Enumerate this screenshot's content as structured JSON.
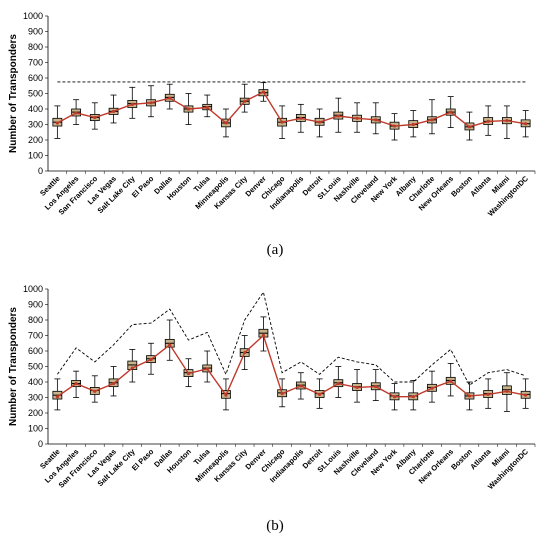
{
  "chart_data": [
    {
      "type": "line",
      "panel_label": "(a)",
      "ylabel": "Number of Transponders",
      "xlabel": "",
      "ylim": [
        0,
        1000
      ],
      "yticks": [
        0,
        100,
        200,
        300,
        400,
        500,
        600,
        700,
        800,
        900,
        1000
      ],
      "grid": false,
      "legend": "none",
      "categories": [
        "Seattle",
        "Los Angeles",
        "San Francisco",
        "Las Vegas",
        "Salt Lake City",
        "El Paso",
        "Dallas",
        "Houston",
        "Tulsa",
        "Minneapolis",
        "Kansas City",
        "Denver",
        "Chicago",
        "Indianapolis",
        "Detroit",
        "St.Louis",
        "Nashville",
        "Cleveland",
        "New York",
        "Albany",
        "Charlotte",
        "New Orleans",
        "Boston",
        "Atlanta",
        "Miami",
        "WashingtonDC"
      ],
      "series": [
        {
          "style": "mean-line",
          "values": [
            310,
            375,
            345,
            385,
            430,
            440,
            470,
            400,
            410,
            310,
            450,
            510,
            315,
            340,
            315,
            355,
            340,
            330,
            290,
            300,
            330,
            380,
            285,
            320,
            325,
            305
          ]
        },
        {
          "style": "box-median",
          "values": [
            315,
            380,
            345,
            385,
            435,
            440,
            475,
            400,
            415,
            310,
            450,
            505,
            315,
            345,
            315,
            360,
            340,
            330,
            290,
            300,
            330,
            380,
            285,
            320,
            325,
            305
          ]
        },
        {
          "style": "whisker-max",
          "values": [
            420,
            460,
            440,
            490,
            540,
            550,
            560,
            500,
            490,
            400,
            560,
            570,
            420,
            430,
            400,
            470,
            440,
            440,
            370,
            390,
            460,
            480,
            380,
            420,
            420,
            390
          ]
        },
        {
          "style": "whisker-min",
          "values": [
            210,
            300,
            270,
            310,
            340,
            350,
            400,
            300,
            350,
            220,
            380,
            450,
            210,
            250,
            220,
            250,
            250,
            240,
            200,
            220,
            240,
            280,
            200,
            230,
            210,
            220
          ]
        },
        {
          "style": "box-upper",
          "values": [
            340,
            400,
            365,
            405,
            455,
            460,
            495,
            420,
            430,
            335,
            470,
            525,
            340,
            365,
            340,
            380,
            360,
            350,
            315,
            325,
            350,
            400,
            310,
            345,
            345,
            330
          ]
        },
        {
          "style": "box-lower",
          "values": [
            290,
            355,
            325,
            365,
            410,
            420,
            450,
            380,
            395,
            285,
            430,
            485,
            290,
            320,
            295,
            335,
            320,
            310,
            270,
            280,
            310,
            360,
            265,
            300,
            305,
            285
          ]
        },
        {
          "style": "dashed-bound",
          "values": [
            575,
            575,
            575,
            575,
            575,
            575,
            575,
            575,
            575,
            575,
            575,
            575,
            575,
            575,
            575,
            575,
            575,
            575,
            575,
            575,
            575,
            575,
            575,
            575,
            575,
            575
          ]
        }
      ]
    },
    {
      "type": "line",
      "panel_label": "(b)",
      "ylabel": "Number of Transponders",
      "xlabel": "",
      "ylim": [
        0,
        1000
      ],
      "yticks": [
        0,
        100,
        200,
        300,
        400,
        500,
        600,
        700,
        800,
        900,
        1000
      ],
      "grid": false,
      "legend": "none",
      "categories": [
        "Seattle",
        "Los Angeles",
        "San Francisco",
        "Las Vegas",
        "Salt Lake City",
        "El Paso",
        "Dallas",
        "Houston",
        "Tulsa",
        "Minneapolis",
        "Kansas City",
        "Denver",
        "Chicago",
        "Indianapolis",
        "Detroit",
        "St.Louis",
        "Nashville",
        "Cleveland",
        "New York",
        "Albany",
        "Charlotte",
        "New Orleans",
        "Boston",
        "Atlanta",
        "Miami",
        "WashingtonDC"
      ],
      "series": [
        {
          "style": "mean-line",
          "values": [
            305,
            390,
            340,
            390,
            490,
            545,
            640,
            455,
            485,
            315,
            590,
            700,
            325,
            375,
            320,
            390,
            365,
            370,
            305,
            305,
            360,
            405,
            310,
            320,
            340,
            315
          ]
        },
        {
          "style": "box-median",
          "values": [
            315,
            390,
            345,
            395,
            510,
            550,
            650,
            460,
            490,
            325,
            590,
            715,
            330,
            380,
            325,
            395,
            370,
            375,
            310,
            310,
            365,
            410,
            310,
            325,
            350,
            320
          ]
        },
        {
          "style": "whisker-max",
          "values": [
            420,
            470,
            440,
            500,
            610,
            650,
            800,
            550,
            600,
            420,
            700,
            820,
            420,
            460,
            420,
            500,
            480,
            480,
            390,
            410,
            470,
            520,
            400,
            420,
            460,
            420
          ]
        },
        {
          "style": "whisker-min",
          "values": [
            220,
            300,
            270,
            310,
            400,
            450,
            540,
            370,
            400,
            220,
            480,
            600,
            240,
            290,
            230,
            300,
            270,
            280,
            220,
            220,
            270,
            310,
            220,
            230,
            210,
            230
          ]
        },
        {
          "style": "box-upper",
          "values": [
            340,
            410,
            365,
            420,
            535,
            570,
            675,
            480,
            510,
            345,
            615,
            740,
            350,
            400,
            345,
            415,
            390,
            395,
            330,
            330,
            385,
            430,
            330,
            345,
            375,
            340
          ]
        },
        {
          "style": "box-lower",
          "values": [
            290,
            370,
            320,
            370,
            480,
            525,
            625,
            435,
            465,
            295,
            565,
            690,
            305,
            355,
            300,
            370,
            345,
            350,
            285,
            285,
            340,
            385,
            290,
            300,
            320,
            295
          ]
        },
        {
          "style": "dashed-bound",
          "values": [
            450,
            620,
            530,
            640,
            770,
            780,
            870,
            670,
            720,
            450,
            800,
            980,
            460,
            530,
            450,
            560,
            530,
            510,
            400,
            400,
            510,
            610,
            380,
            460,
            480,
            440
          ]
        }
      ]
    }
  ]
}
